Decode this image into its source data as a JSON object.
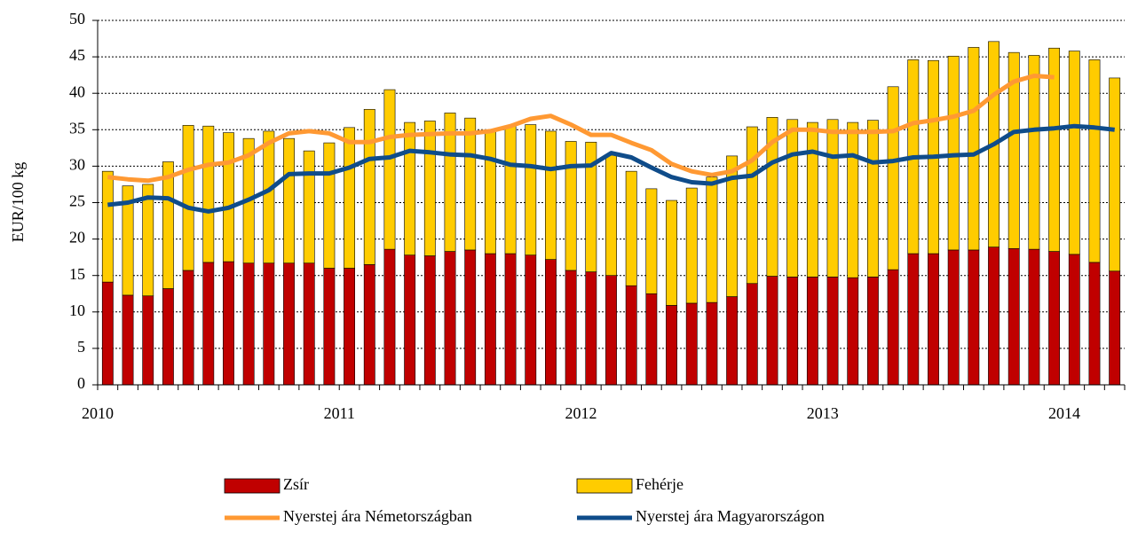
{
  "chart_data": {
    "type": "bar",
    "stacked": true,
    "y_label": "EUR/100 kg",
    "categories": [
      "2010",
      null,
      null,
      null,
      null,
      null,
      null,
      null,
      null,
      null,
      null,
      null,
      "2011",
      null,
      null,
      null,
      null,
      null,
      null,
      null,
      null,
      null,
      null,
      null,
      "2012",
      null,
      null,
      null,
      null,
      null,
      null,
      null,
      null,
      null,
      null,
      null,
      "2013",
      null,
      null,
      null,
      null,
      null,
      null,
      null,
      null,
      null,
      null,
      null,
      "2014",
      null,
      null
    ],
    "series": [
      {
        "name": "Zsír",
        "type": "bar",
        "color": "#c00000",
        "values": [
          14.1,
          12.3,
          12.2,
          13.2,
          15.7,
          16.8,
          16.9,
          16.7,
          16.7,
          16.7,
          16.7,
          16.0,
          16.0,
          16.5,
          18.6,
          17.8,
          17.7,
          18.3,
          18.5,
          18.0,
          18.0,
          17.8,
          17.2,
          15.7,
          15.5,
          15.0,
          13.6,
          12.5,
          10.9,
          11.2,
          11.3,
          12.1,
          13.9,
          14.9,
          14.8,
          14.8,
          14.8,
          14.7,
          14.8,
          15.8,
          18.0,
          18.0,
          18.5,
          18.5,
          18.9,
          18.7,
          18.6,
          18.3,
          17.9,
          16.8,
          15.6
        ]
      },
      {
        "name": "Fehérje",
        "type": "bar",
        "color": "#ffcc00",
        "values": [
          15.2,
          15.0,
          15.3,
          17.4,
          19.9,
          18.7,
          17.7,
          17.1,
          18.1,
          17.1,
          15.4,
          17.2,
          19.3,
          21.3,
          21.9,
          18.2,
          18.5,
          19.0,
          18.1,
          17.0,
          17.5,
          17.9,
          17.6,
          17.7,
          17.8,
          16.5,
          15.7,
          14.4,
          14.4,
          15.8,
          17.2,
          19.3,
          21.5,
          21.8,
          21.6,
          21.2,
          21.6,
          21.3,
          21.5,
          25.1,
          26.6,
          26.5,
          26.6,
          27.8,
          28.2,
          26.9,
          26.6,
          27.9,
          27.9,
          27.8,
          26.5
        ]
      },
      {
        "name": "Nyerstej ára Németországban",
        "type": "line",
        "color": "#ff9933",
        "values": [
          28.5,
          28.2,
          28.0,
          28.5,
          29.5,
          30.2,
          30.5,
          31.5,
          33.2,
          34.5,
          34.8,
          34.5,
          33.3,
          33.3,
          34.0,
          34.3,
          34.4,
          34.5,
          34.5,
          34.8,
          35.5,
          36.5,
          36.9,
          35.7,
          34.3,
          34.3,
          33.2,
          32.2,
          30.3,
          29.3,
          28.8,
          29.3,
          30.8,
          33.3,
          35.0,
          35.0,
          34.7,
          34.7,
          34.7,
          34.8,
          35.9,
          36.3,
          36.8,
          37.6,
          39.8,
          41.6,
          42.4,
          42.2,
          null,
          null,
          null
        ]
      },
      {
        "name": "Nyerstej ára Magyarországon",
        "type": "line",
        "color": "#0f4c8a",
        "values": [
          24.7,
          25.0,
          25.7,
          25.6,
          24.3,
          23.8,
          24.3,
          25.4,
          26.7,
          28.9,
          29.0,
          29.0,
          29.8,
          31.0,
          31.2,
          32.1,
          31.9,
          31.6,
          31.5,
          31.0,
          30.2,
          30.0,
          29.6,
          30.0,
          30.1,
          31.8,
          31.2,
          29.8,
          28.5,
          27.8,
          27.6,
          28.4,
          28.7,
          30.5,
          31.6,
          32.0,
          31.3,
          31.5,
          30.5,
          30.7,
          31.2,
          31.3,
          31.5,
          31.6,
          33.0,
          34.7,
          35.0,
          35.2,
          35.5,
          35.3,
          35.0
        ]
      }
    ],
    "ylim": [
      0,
      50
    ],
    "yticks": [
      0,
      5,
      10,
      15,
      20,
      25,
      30,
      35,
      40,
      45,
      50
    ],
    "grid": true
  }
}
